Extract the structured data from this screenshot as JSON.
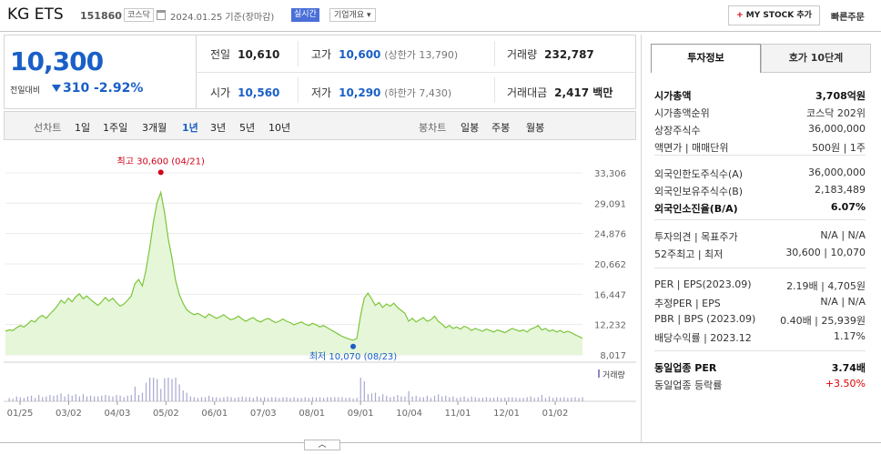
{
  "header": {
    "name": "KG ETS",
    "code": "151860",
    "market": "코스닥",
    "date": "2024.01.25 기준(장마감)",
    "live": "실시간",
    "corp_overview": "기업개요 ▾",
    "mystock": "MY STOCK 추가",
    "quick_order": "빠른주문"
  },
  "price": {
    "current": "10,300",
    "change_label": "전일대비",
    "change": "310",
    "change_pct": "-2.92%",
    "direction": "down",
    "color_down": "#1a5fc7"
  },
  "summary": {
    "prev_label": "전일",
    "prev": "10,610",
    "high_label": "고가",
    "high": "10,600",
    "upper_limit": "(상한가 13,790)",
    "volume_label": "거래량",
    "volume": "232,787",
    "open_label": "시가",
    "open": "10,560",
    "low_label": "저가",
    "low": "10,290",
    "lower_limit": "(하한가 7,430)",
    "amount_label": "거래대금",
    "amount": "2,417 백만"
  },
  "period_tabs": {
    "line_label": "선차트",
    "line": [
      "1일",
      "1주일",
      "3개월",
      "1년",
      "3년",
      "5년",
      "10년"
    ],
    "active": "1년",
    "candle_label": "봉차트",
    "candle": [
      "일봉",
      "주봉",
      "월봉"
    ]
  },
  "chart_data": {
    "type": "area",
    "y_ticks": [
      "33,306",
      "29,091",
      "24,876",
      "20,662",
      "16,447",
      "12,232",
      "8,017"
    ],
    "ylim": [
      8017,
      33306
    ],
    "x_ticks": [
      "01/25",
      "03/02",
      "04/03",
      "05/02",
      "06/01",
      "07/03",
      "08/01",
      "09/01",
      "10/04",
      "11/01",
      "12/01",
      "01/02"
    ],
    "high_annotation": "최고 30,600 (04/21)",
    "low_annotation": "최저 10,070 (08/23)",
    "volume_label": "거래량",
    "line_color": "#7cc63a",
    "fill_color": "#e6f6d9",
    "series": [
      {
        "values": [
          11300,
          11500,
          11400,
          11800,
          12100,
          11900,
          12300,
          12800,
          12600,
          13200,
          13500,
          13100,
          13700,
          14200,
          14800,
          15600,
          15200,
          15900,
          15400,
          16100,
          16500,
          15800,
          16200,
          15700,
          15300,
          14900,
          15400,
          16000,
          15500,
          15900,
          15300,
          14800,
          15100,
          15600,
          16200,
          17900,
          18500,
          17600,
          19800,
          22900,
          26500,
          29200,
          30600,
          27800,
          24200,
          21500,
          18400,
          16400,
          15200,
          14300,
          13900,
          13600,
          13800,
          13500,
          13200,
          13700,
          13400,
          13100,
          13300,
          13600,
          13200,
          12900,
          13100,
          13400,
          13000,
          12700,
          13000,
          13200,
          12800,
          12600,
          12900,
          13100,
          12800,
          12500,
          12700,
          13000,
          12700,
          12500,
          12200,
          12400,
          12600,
          12300,
          12100,
          12400,
          12200,
          11900,
          12100,
          11800,
          11500,
          11200,
          10900,
          10600,
          10400,
          10200,
          10070,
          10300,
          13500,
          15900,
          16600,
          15800,
          14900,
          15300,
          14600,
          15100,
          14800,
          15200,
          14600,
          14200,
          13800,
          12700,
          13100,
          12600,
          12900,
          13200,
          12700,
          12900,
          13400,
          12700,
          12300,
          11800,
          12100,
          11700,
          11900,
          11600,
          12000,
          11800,
          11400,
          11700,
          11500,
          11300,
          11600,
          11400,
          11200,
          11500,
          11300,
          11100,
          11400,
          11700,
          11500,
          11300,
          11500,
          11200,
          11600,
          11800,
          12100,
          11500,
          11700,
          11300,
          11500,
          11200,
          11400,
          11100,
          11300,
          11100,
          10800,
          10600,
          10300
        ]
      }
    ]
  },
  "right_panel": {
    "tab_invest": "투자정보",
    "tab_quote": "호가 10단계",
    "rows1": [
      {
        "k": "시가총액",
        "v": "3,708억원",
        "bold": true
      },
      {
        "k": "시가총액순위",
        "v": "코스닥 202위",
        "bold": false
      },
      {
        "k": "상장주식수",
        "v": "36,000,000",
        "bold": false
      },
      {
        "k": "액면가 | 매매단위",
        "v": "500원 | 1주",
        "bold": false
      }
    ],
    "rows2": [
      {
        "k": "외국인한도주식수(A)",
        "v": "36,000,000",
        "bold": false
      },
      {
        "k": "외국인보유주식수(B)",
        "v": "2,183,489",
        "bold": false
      },
      {
        "k": "외국인소진율(B/A)",
        "v": "6.07%",
        "bold": true
      }
    ],
    "rows3": [
      {
        "k": "투자의견 | 목표주가",
        "v": "N/A | N/A",
        "bold": false
      },
      {
        "k": "52주최고 | 최저",
        "v": "30,600 | 10,070",
        "bold": false
      }
    ],
    "rows4": [
      {
        "k": "PER | EPS(2023.09)",
        "v": "2.19배 | 4,705원",
        "bold": false
      },
      {
        "k": "추정PER | EPS",
        "v": "N/A | N/A",
        "bold": false
      },
      {
        "k": "PBR | BPS (2023.09)",
        "v": "0.40배 | 25,939원",
        "bold": false
      },
      {
        "k": "배당수익률 | 2023.12",
        "v": "1.17%",
        "bold": false
      }
    ],
    "rows5": [
      {
        "k": "동일업종 PER",
        "v": "3.74배",
        "bold": true
      },
      {
        "k": "동일업종 등락률",
        "v": "+3.50%",
        "bold": false,
        "red": true
      }
    ]
  },
  "collapse_label": "︿"
}
